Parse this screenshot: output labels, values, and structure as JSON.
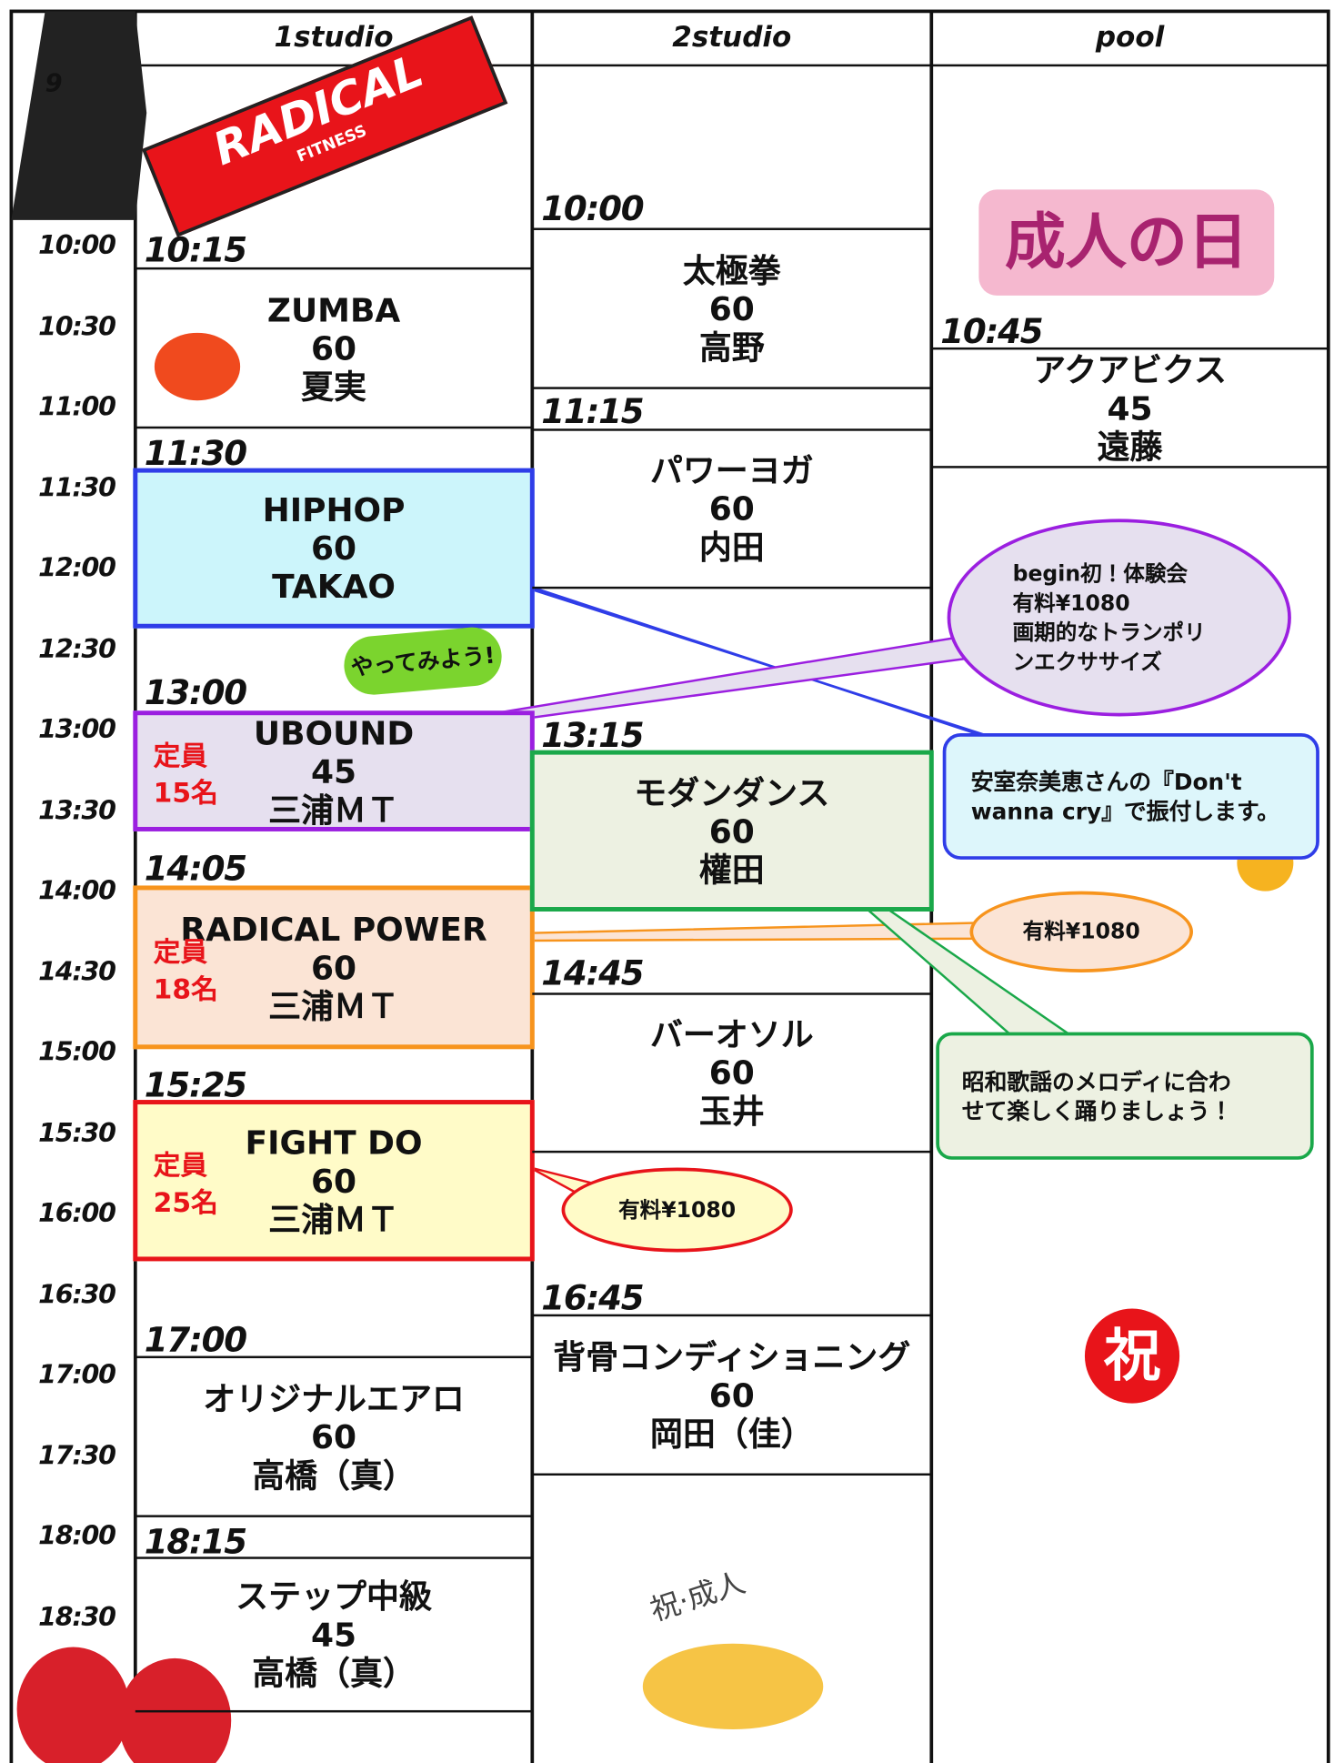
{
  "header": {
    "columns": [
      "1studio",
      "2studio",
      "pool"
    ],
    "hour_fragment": "9"
  },
  "times": [
    "10:00",
    "10:30",
    "11:00",
    "11:30",
    "12:00",
    "12:30",
    "13:00",
    "13:30",
    "14:00",
    "14:30",
    "15:00",
    "15:30",
    "16:00",
    "16:30",
    "17:00",
    "17:30",
    "18:00",
    "18:30"
  ],
  "studios": [
    {
      "classes": [
        {
          "start": "10:15",
          "name": "ZUMBA",
          "duration": "60",
          "instructor": "夏実"
        },
        {
          "start": "11:30",
          "name": "HIPHOP",
          "duration": "60",
          "instructor": "TAKAO"
        },
        {
          "start": "13:00",
          "name": "UBOUND",
          "duration": "45",
          "instructor": "三浦ＭＴ",
          "capacity_label": "定員",
          "capacity": "15名"
        },
        {
          "start": "14:05",
          "name": "RADICAL POWER",
          "duration": "60",
          "instructor": "三浦ＭＴ",
          "capacity_label": "定員",
          "capacity": "18名"
        },
        {
          "start": "15:25",
          "name": "FIGHT DO",
          "duration": "60",
          "instructor": "三浦ＭＴ",
          "capacity_label": "定員",
          "capacity": "25名"
        },
        {
          "start": "17:00",
          "name": "オリジナルエアロ",
          "duration": "60",
          "instructor": "高橋（真）"
        },
        {
          "start": "18:15",
          "name": "ステップ中級",
          "duration": "45",
          "instructor": "高橋（真）"
        }
      ]
    },
    {
      "classes": [
        {
          "start": "10:00",
          "name": "太極拳",
          "duration": "60",
          "instructor": "高野"
        },
        {
          "start": "11:15",
          "name": "パワーヨガ",
          "duration": "60",
          "instructor": "内田"
        },
        {
          "start": "13:15",
          "name": "モダンダンス",
          "duration": "60",
          "instructor": "權田"
        },
        {
          "start": "14:45",
          "name": "バーオソル",
          "duration": "60",
          "instructor": "玉井"
        },
        {
          "start": "16:45",
          "name": "背骨コンディショニング",
          "duration": "60",
          "instructor": "岡田（佳）"
        }
      ]
    },
    {
      "classes": [
        {
          "start": "10:45",
          "name": "アクアビクス",
          "duration": "45",
          "instructor": "遠藤"
        }
      ]
    }
  ],
  "callouts": [
    {
      "lines": [
        "begin初！体験会",
        "有料¥1080",
        "画期的なトランポリ",
        "ンエクササイズ"
      ]
    },
    {
      "lines": [
        "安室奈美恵さんの『Don't",
        "wanna cry』で振付します。"
      ]
    },
    {
      "lines": [
        "有料¥1080"
      ]
    },
    {
      "lines": [
        "昭和歌謡のメロディに合わ",
        "せて楽しく踊りましょう！"
      ]
    },
    {
      "lines": [
        "有料¥1080"
      ]
    }
  ],
  "decorations": {
    "banner": "RADICAL",
    "banner_sub": "FITNESS",
    "holiday": "成人の日",
    "try_it": "やってみよう!",
    "celebrate": "祝",
    "toast": "祝·成人"
  }
}
